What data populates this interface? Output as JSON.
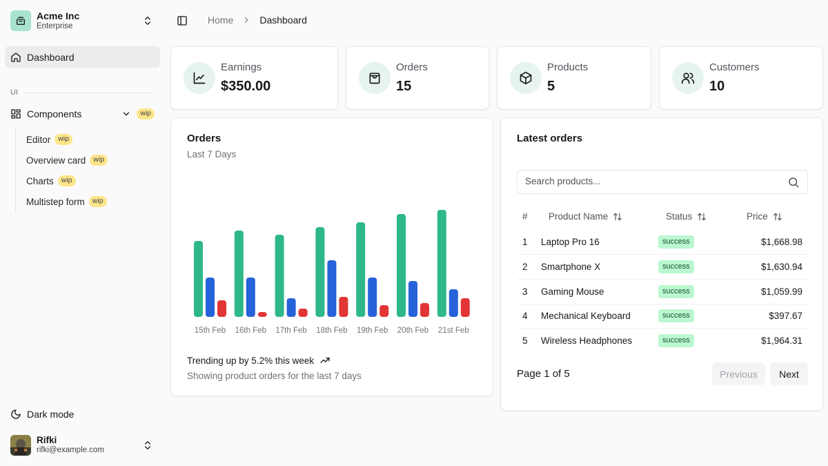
{
  "workspace": {
    "name": "Acme Inc",
    "plan": "Enterprise"
  },
  "sidebar": {
    "dashboard_label": "Dashboard",
    "group_label": "UI",
    "components_label": "Components",
    "components_badge": "wip",
    "sub_items": [
      {
        "label": "Editor",
        "badge": "wip"
      },
      {
        "label": "Overview card",
        "badge": "wip"
      },
      {
        "label": "Charts",
        "badge": "wip"
      },
      {
        "label": "Multistep form",
        "badge": "wip"
      }
    ],
    "dark_mode_label": "Dark mode"
  },
  "user": {
    "name": "Rifki",
    "email": "rifki@example.com"
  },
  "breadcrumb": {
    "home": "Home",
    "current": "Dashboard"
  },
  "stats": [
    {
      "label": "Earnings",
      "value": "$350.00",
      "icon": "line-chart-icon"
    },
    {
      "label": "Orders",
      "value": "15",
      "icon": "shopping-bag-icon"
    },
    {
      "label": "Products",
      "value": "5",
      "icon": "box-icon"
    },
    {
      "label": "Customers",
      "value": "10",
      "icon": "users-icon"
    }
  ],
  "orders_chart": {
    "title": "Orders",
    "subtitle": "Last 7 Days",
    "trend_text": "Trending up by 5.2% this week",
    "footer_text": "Showing product orders for the last 7 days"
  },
  "chart_data": {
    "type": "bar",
    "categories": [
      "15th Feb",
      "16th Feb",
      "17th Feb",
      "18th Feb",
      "19th Feb",
      "20th Feb",
      "21st Feb"
    ],
    "series": [
      {
        "values": [
          110,
          125,
          119,
          130,
          137,
          149,
          155
        ]
      },
      {
        "values": [
          57,
          57,
          27,
          82,
          57,
          52,
          40
        ]
      },
      {
        "values": [
          24,
          7,
          12,
          29,
          17,
          20,
          27
        ]
      }
    ],
    "colors": [
      "#2eb88a",
      "#2662d9",
      "#e23636"
    ],
    "title": "",
    "xlabel": "",
    "ylabel": "",
    "ylim": [
      0,
      160
    ],
    "grid": false,
    "legend": "none"
  },
  "latest_orders": {
    "title": "Latest orders",
    "search_placeholder": "Search products...",
    "columns": {
      "num": "#",
      "product": "Product Name",
      "status": "Status",
      "price": "Price"
    },
    "rows": [
      {
        "num": "1",
        "product": "Laptop Pro 16",
        "status": "success",
        "price": "$1,668.98"
      },
      {
        "num": "2",
        "product": "Smartphone X",
        "status": "success",
        "price": "$1,630.94"
      },
      {
        "num": "3",
        "product": "Gaming Mouse",
        "status": "success",
        "price": "$1,059.99"
      },
      {
        "num": "4",
        "product": "Mechanical Keyboard",
        "status": "success",
        "price": "$397.67"
      },
      {
        "num": "5",
        "product": "Wireless Headphones",
        "status": "success",
        "price": "$1,964.31"
      }
    ],
    "page_info": "Page 1 of 5",
    "prev_label": "Previous",
    "next_label": "Next"
  }
}
